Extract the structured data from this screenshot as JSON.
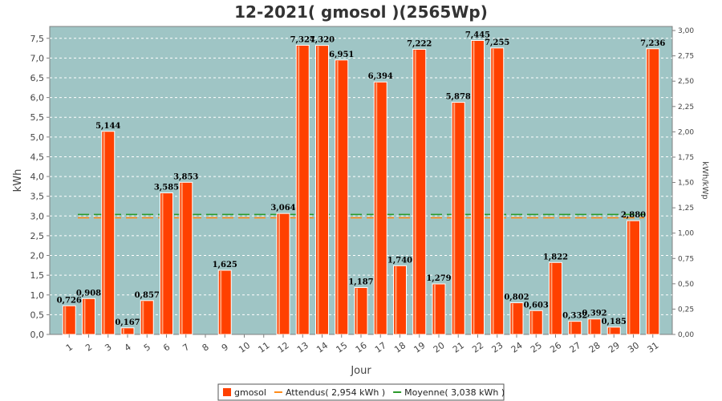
{
  "chart_data": {
    "type": "bar",
    "title": "12-2021( gmosol )(2565Wp)",
    "xlabel": "Jour",
    "ylabel": "kWh",
    "y2label": "kWh/kWp",
    "ylim": [
      0,
      7.8
    ],
    "y2lim": [
      0,
      3.04
    ],
    "yticks": [
      "0,0",
      "0,5",
      "1,0",
      "1,5",
      "2,0",
      "2,5",
      "3,0",
      "3,5",
      "4,0",
      "4,5",
      "5,0",
      "5,5",
      "6,0",
      "6,5",
      "7,0",
      "7,5"
    ],
    "y2ticks": [
      "0,00",
      "0,25",
      "0,50",
      "0,75",
      "1,00",
      "1,25",
      "1,50",
      "1,75",
      "2,00",
      "2,25",
      "2,50",
      "2,75",
      "3,00"
    ],
    "categories": [
      "1",
      "2",
      "3",
      "4",
      "5",
      "6",
      "7",
      "8",
      "9",
      "10",
      "11",
      "12",
      "13",
      "14",
      "15",
      "16",
      "17",
      "18",
      "19",
      "20",
      "21",
      "22",
      "23",
      "24",
      "25",
      "26",
      "27",
      "28",
      "29",
      "30",
      "31"
    ],
    "series": [
      {
        "name": "gmosol",
        "color": "#ff4000",
        "values": [
          0.726,
          0.908,
          5.144,
          0.167,
          0.857,
          3.585,
          3.853,
          0,
          1.625,
          0,
          0,
          3.064,
          7.324,
          7.32,
          6.951,
          1.187,
          6.394,
          1.74,
          7.222,
          1.279,
          5.878,
          7.445,
          7.255,
          0.802,
          0.603,
          1.822,
          0.332,
          0.392,
          0.185,
          2.88,
          7.236
        ],
        "labels": [
          "0,726",
          "0,908",
          "5,144",
          "0,167",
          "0,857",
          "3,585",
          "3,853",
          "",
          "1,625",
          "",
          "",
          "3,064",
          "7,324",
          "7,320",
          "6,951",
          "1,187",
          "6,394",
          "1,740",
          "7,222",
          "1,279",
          "5,878",
          "7,445",
          "7,255",
          "0,802",
          "0,603",
          "1,822",
          "0,332",
          "0,392",
          "0,185",
          "2,880",
          "7,236"
        ]
      }
    ],
    "reference_lines": [
      {
        "name": "Attendus( 2,954 kWh )",
        "value": 2.954,
        "color": "#ff8c1a"
      },
      {
        "name": "Moyenne( 3,038 kWh )",
        "value": 3.038,
        "color": "#2a9a2a"
      }
    ],
    "legend": {
      "position": "bottom",
      "items": [
        {
          "label": "gmosol",
          "symbol": "square",
          "color": "#ff4000"
        },
        {
          "label": "Attendus( 2,954 kWh )",
          "symbol": "line",
          "color": "#ff8c1a"
        },
        {
          "label": "Moyenne( 3,038 kWh )",
          "symbol": "line",
          "color": "#2a9a2a"
        }
      ]
    },
    "plot_background": "#9fc5c5",
    "grid": true
  }
}
